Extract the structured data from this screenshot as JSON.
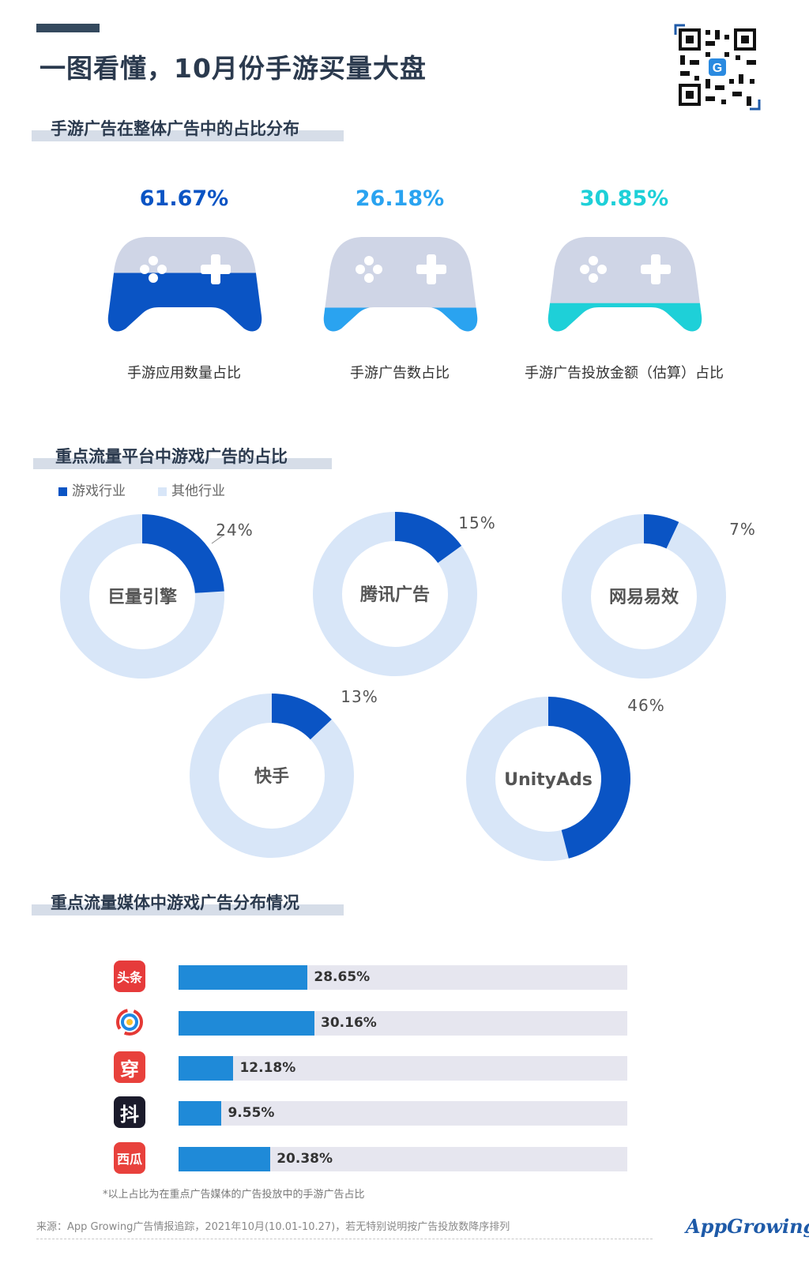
{
  "title": "一图看懂，10月份手游买量大盘",
  "section1": {
    "title": "手游广告在整体广告中的占比分布",
    "items": [
      {
        "pct": "61.67%",
        "value": 61.67,
        "label": "手游应用数量占比",
        "color": "#0a54c4"
      },
      {
        "pct": "26.18%",
        "value": 26.18,
        "label": "手游广告数占比",
        "color": "#2aa3f0"
      },
      {
        "pct": "30.85%",
        "value": 30.85,
        "label": "手游广告投放金额（估算）占比",
        "color": "#1ed0d8"
      }
    ]
  },
  "section2": {
    "title": "重点流量平台中游戏广告的占比",
    "legend": [
      {
        "label": "游戏行业",
        "color": "#0a54c4"
      },
      {
        "label": "其他行业",
        "color": "#d8e6f8"
      }
    ]
  },
  "section3": {
    "title": "重点流量媒体中游戏广告分布情况",
    "icons": [
      {
        "icon": "toutiao-icon",
        "text": "头条",
        "color": "#e63b3b"
      },
      {
        "icon": "tencent-news-icon",
        "text": "",
        "color": "#ffffff"
      },
      {
        "icon": "chuanshanjia-icon",
        "text": "穿",
        "color": "#e8413c"
      },
      {
        "icon": "douyin-icon",
        "text": "抖",
        "color": "#1b1b2b"
      },
      {
        "icon": "xigua-icon",
        "text": "西瓜",
        "color": "#e8413c"
      }
    ],
    "note": "*以上占比为在重点广告媒体的广告投放中的手游广告占比"
  },
  "chart_data": [
    {
      "type": "pie",
      "categories": [
        "巨量引擎",
        "腾讯广告",
        "网易易效",
        "快手",
        "UnityAds"
      ],
      "series": [
        {
          "name": "游戏行业",
          "values": [
            24,
            15,
            7,
            13,
            46
          ]
        }
      ],
      "labels": [
        "24%",
        "15%",
        "7%",
        "13%",
        "46%"
      ]
    },
    {
      "type": "bar",
      "categories": [
        "头条",
        "腾讯新闻",
        "穿山甲",
        "抖音",
        "西瓜"
      ],
      "values": [
        28.65,
        30.16,
        12.18,
        9.55,
        20.38
      ],
      "labels": [
        "28.65%",
        "30.16%",
        "12.18%",
        "9.55%",
        "20.38%"
      ],
      "xlim": [
        0,
        100
      ]
    }
  ],
  "footer": {
    "source": "来源：App Growing广告情报追踪，2021年10月(10.01-10.27)，若无特别说明按广告投放数降序排列",
    "logo": "AppGrowing"
  },
  "colors": {
    "primary": "#0a54c4",
    "light": "#d8e6f8",
    "bar": "#1f8ad8",
    "title": "#2b3a4e"
  }
}
